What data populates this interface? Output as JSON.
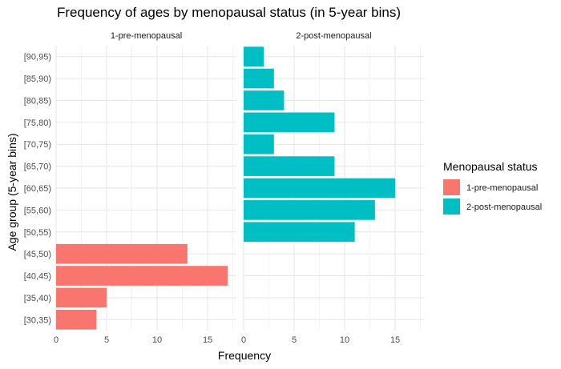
{
  "chart_data": {
    "type": "bar",
    "orientation": "horizontal",
    "title": "Frequency of ages by menopausal status (in 5-year bins)",
    "xlabel": "Frequency",
    "ylabel": "Age group (5-year bins)",
    "xlim": [
      0,
      17.85
    ],
    "x_ticks": [
      "0",
      "5",
      "10",
      "15"
    ],
    "grid": true,
    "legend": {
      "title": "Menopausal status",
      "placement": "right",
      "entries": [
        "1-pre-menopausal",
        "2-post-menopausal"
      ]
    },
    "categories": [
      "[30,35)",
      "[35,40)",
      "[40,45)",
      "[45,50)",
      "[50,55)",
      "[55,60)",
      "[60,65)",
      "[65,70)",
      "[70,75)",
      "[75,80)",
      "[80,85)",
      "[85,90)",
      "[90,95)"
    ],
    "facets": [
      {
        "label": "1-pre-menopausal",
        "color": "#F8766D",
        "values": [
          4,
          5,
          17,
          13,
          0,
          0,
          0,
          0,
          0,
          0,
          0,
          0,
          0
        ]
      },
      {
        "label": "2-post-menopausal",
        "color": "#00BFC4",
        "values": [
          0,
          0,
          0,
          0,
          11,
          13,
          15,
          9,
          3,
          9,
          4,
          3,
          2
        ]
      }
    ]
  }
}
